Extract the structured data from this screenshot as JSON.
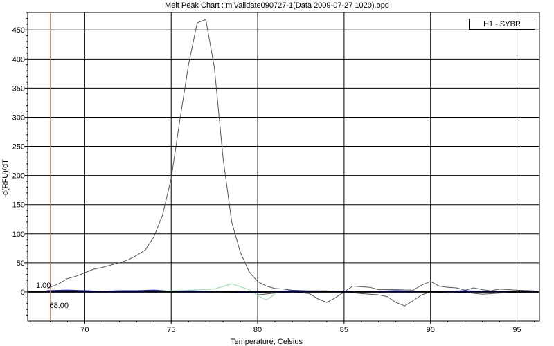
{
  "chart_data": {
    "type": "line",
    "title": "Melt Peak Chart : miValidate090727-1(Data 2009-07-27 1020).opd",
    "xlabel": "Temperature, Celsius",
    "ylabel": "-d(RFU)/dT",
    "xlim": [
      66.7,
      96.3
    ],
    "ylim": [
      -50,
      480
    ],
    "xticks": [
      70,
      75,
      80,
      85,
      90,
      95
    ],
    "yticks": [
      0,
      50,
      100,
      150,
      200,
      250,
      300,
      350,
      400,
      450
    ],
    "grid": true,
    "legend": {
      "position": "top-right",
      "entries": [
        "H1 - SYBR"
      ]
    },
    "marker": {
      "x": 68.0,
      "y_label": "1.00",
      "x_label": "68.00",
      "color": "#e08060"
    },
    "threshold": {
      "y": 0
    },
    "series": [
      {
        "name": "H1 - SYBR",
        "color": "#555555",
        "x": [
          67.8,
          68.0,
          68.5,
          69.0,
          69.5,
          70.0,
          70.5,
          71.0,
          71.5,
          72.0,
          72.5,
          73.0,
          73.5,
          74.0,
          74.5,
          75.0,
          75.5,
          76.0,
          76.5,
          77.0,
          77.5,
          78.0,
          78.5,
          79.0,
          79.5,
          80.0,
          80.5,
          81.0,
          81.5,
          82.0,
          83.0,
          84.0,
          85.0,
          85.5,
          86.0,
          86.5,
          87.0,
          88.0,
          89.0,
          89.5,
          90.0,
          90.5,
          91.0,
          91.5,
          92.0,
          92.5,
          93.0,
          93.5,
          94.0,
          95.0,
          96.0
        ],
        "y": [
          5,
          8,
          14,
          23,
          27,
          33,
          39,
          42,
          46,
          50,
          55,
          63,
          72,
          95,
          132,
          195,
          295,
          390,
          462,
          468,
          385,
          230,
          120,
          68,
          35,
          18,
          10,
          6,
          5,
          3,
          2,
          2,
          0,
          10,
          9,
          8,
          4,
          4,
          3,
          12,
          18,
          10,
          8,
          7,
          3,
          7,
          4,
          2,
          5,
          3,
          2
        ]
      },
      {
        "name": "",
        "color": "#555555",
        "x": [
          80.0,
          81.0,
          82.0,
          83.0,
          83.5,
          84.0,
          84.5,
          85.0,
          86.0,
          87.0,
          87.5,
          88.0,
          88.5,
          89.0,
          89.5,
          90.0,
          91.0,
          92.0,
          93.0,
          94.0,
          95.0,
          96.0
        ],
        "y": [
          -5,
          -2,
          0,
          -3,
          -12,
          -18,
          -10,
          0,
          -3,
          -5,
          -8,
          -18,
          -24,
          -15,
          -5,
          0,
          -2,
          -1,
          -4,
          -2,
          -1,
          0
        ]
      },
      {
        "name": "",
        "color": "#2020e0",
        "x": [
          67.8,
          69.0,
          70.0,
          71.0,
          72.0,
          73.0,
          74.0,
          75.0,
          76.0,
          77.0,
          78.0,
          79.0,
          80.0,
          81.0,
          82.0,
          83.0,
          84.0,
          85.0,
          86.0,
          87.0,
          88.0,
          89.0,
          90.0,
          91.0,
          92.0,
          93.0,
          94.0,
          95.0,
          96.0
        ],
        "y": [
          2,
          3,
          2,
          1,
          2,
          2,
          3,
          1,
          2,
          1,
          0,
          -1,
          -1,
          1,
          2,
          1,
          0,
          1,
          0,
          1,
          2,
          1,
          0,
          1,
          2,
          1,
          1,
          0,
          1
        ]
      },
      {
        "name": "",
        "color": "#90e0a0",
        "x": [
          74.0,
          76.0,
          77.5,
          78.5,
          79.5,
          80.0,
          80.5,
          81.0
        ],
        "y": [
          1,
          3,
          5,
          14,
          4,
          -6,
          -14,
          -4
        ]
      }
    ]
  }
}
